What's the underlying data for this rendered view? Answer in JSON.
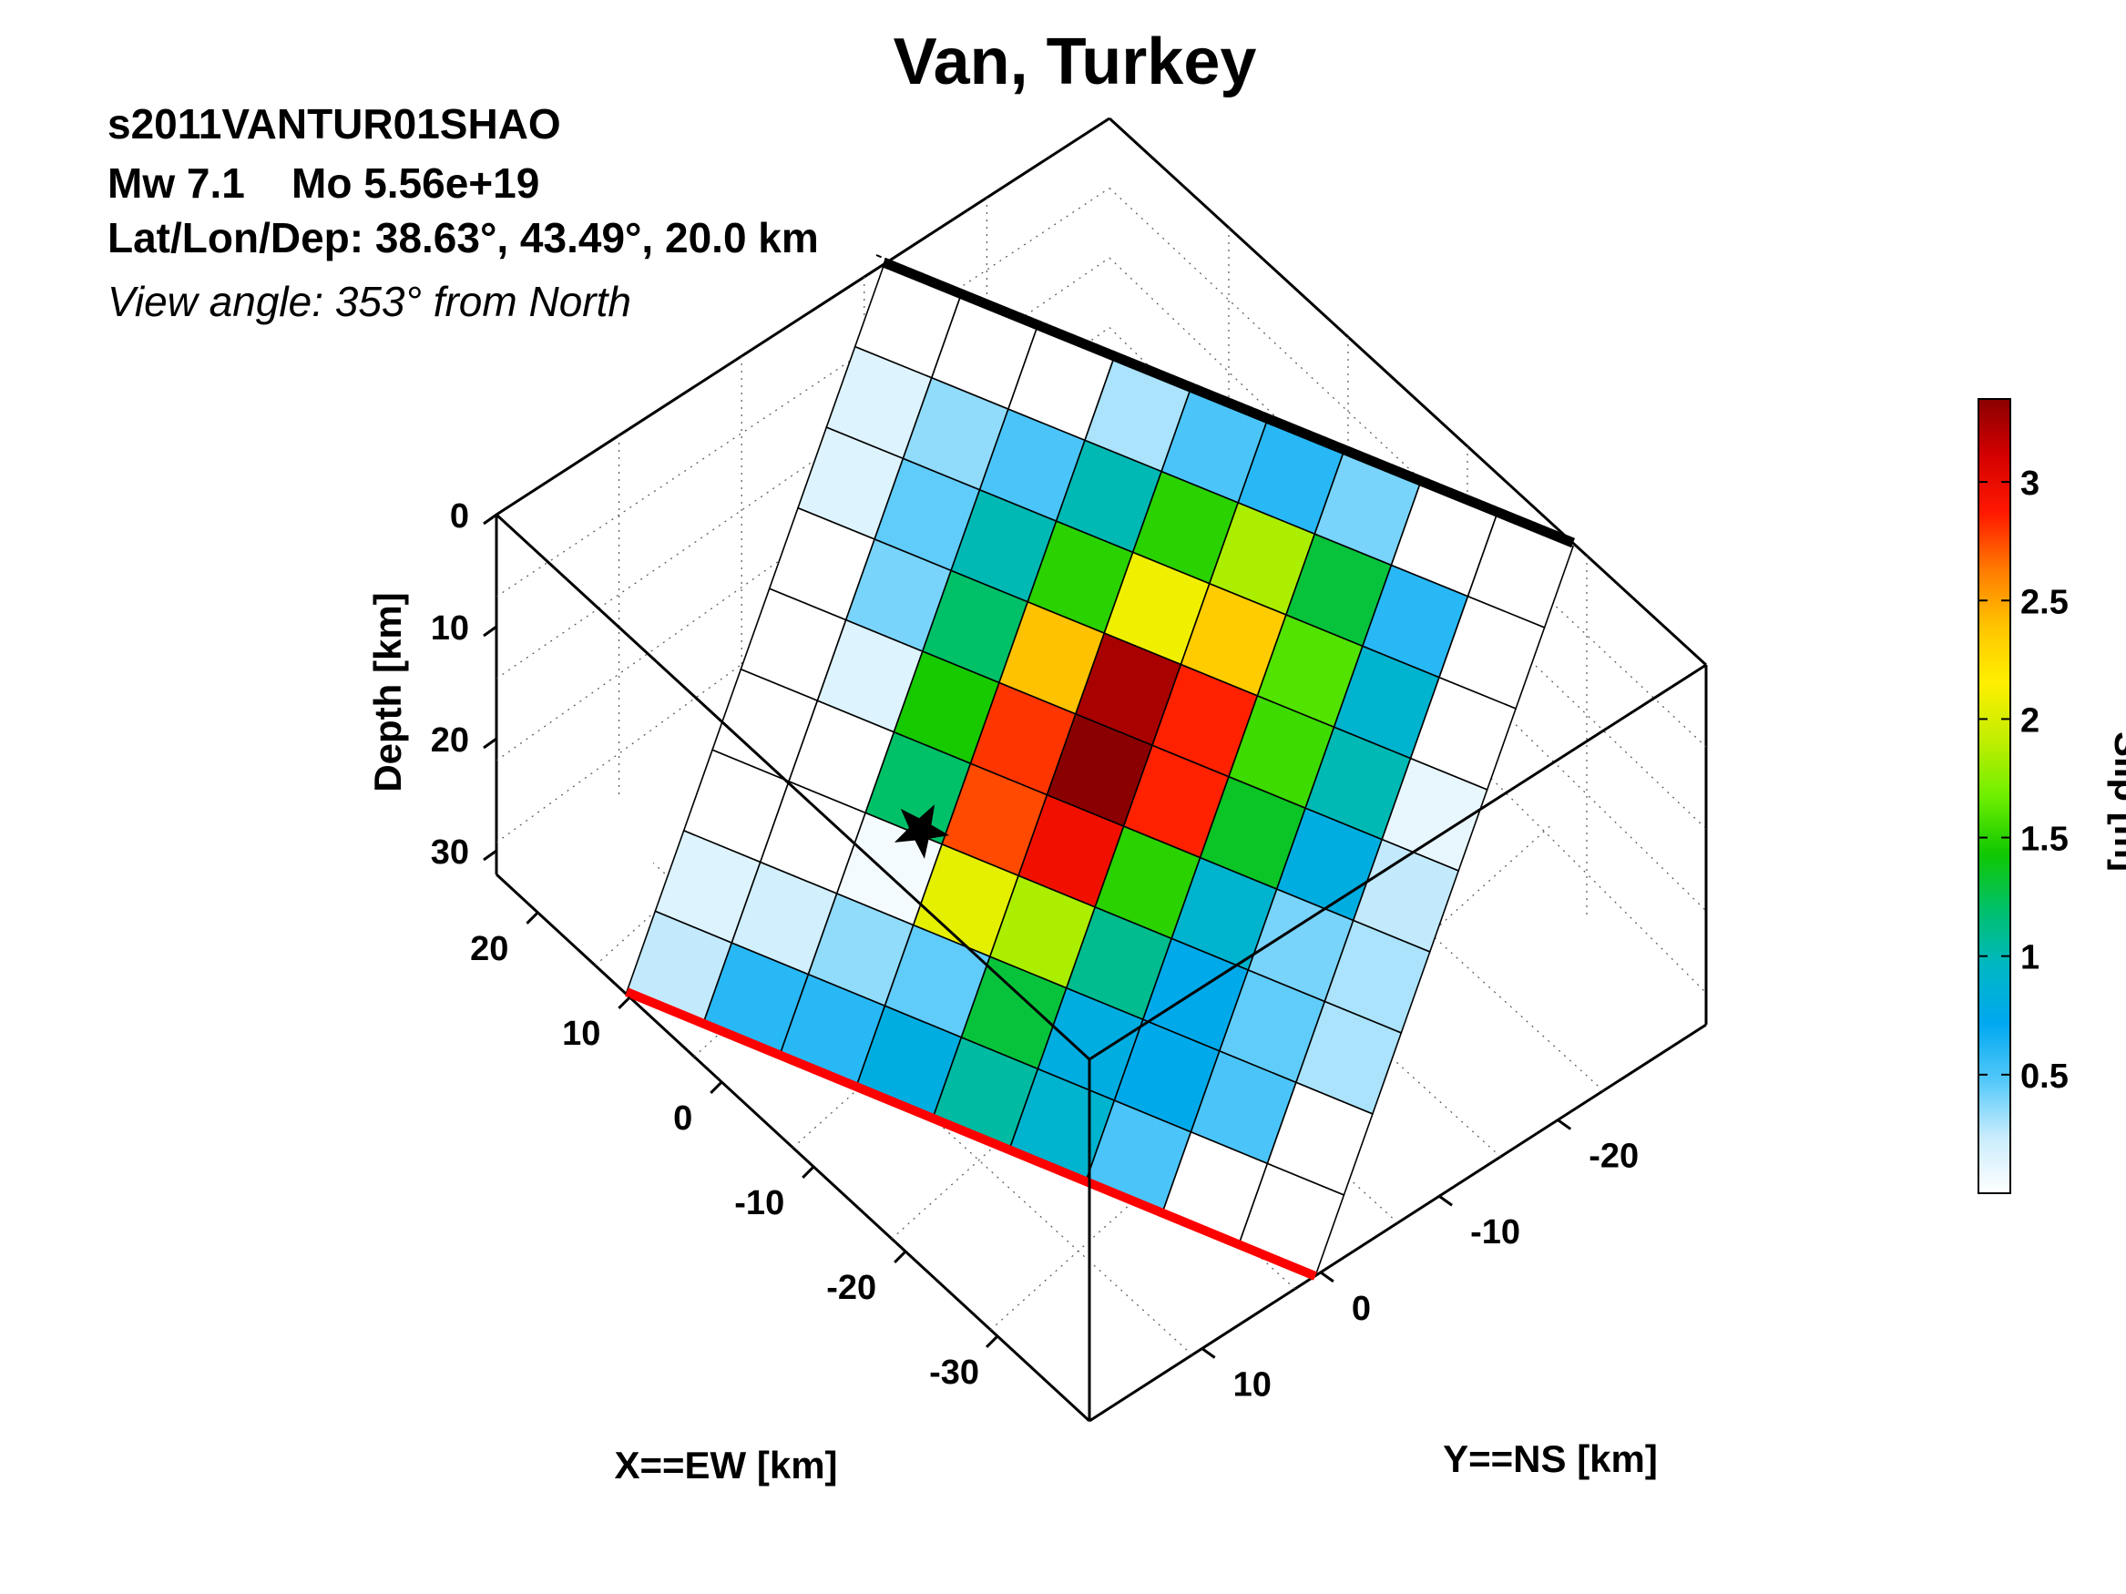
{
  "chart_data": {
    "type": "heatmap",
    "title": "Van, Turkey",
    "event_id": "s2011VANTUR01SHAO",
    "magnitude_text": "Mw 7.1",
    "moment_text": "Mo 5.56e+19",
    "location_text": "Lat/Lon/Dep: 38.63°, 43.49°, 20.0 km",
    "view_text": "View angle: 353° from North",
    "xlabel": "X==EW [km]",
    "ylabel": "Y==NS [km]",
    "zlabel": "Depth [km]",
    "colorbar_label": "Slip [m]",
    "x_ticks": [
      "20",
      "10",
      "0",
      "-10",
      "-20",
      "-30"
    ],
    "y_ticks": [
      "-20",
      "-10",
      "0",
      "10"
    ],
    "depth_ticks": [
      "0",
      "10",
      "20",
      "30"
    ],
    "colorbar_ticks": [
      "0.5",
      "1",
      "1.5",
      "2",
      "2.5",
      "3"
    ],
    "color_range": [
      0,
      3.35
    ],
    "subfault_grid": {
      "rows_top_to_bottom": 9,
      "columns_from_left_to_right": 9,
      "slip_m": [
        [
          0.0,
          0.0,
          0.0,
          0.3,
          0.5,
          0.6,
          0.4,
          0.0,
          0.0
        ],
        [
          0.15,
          0.35,
          0.5,
          1.0,
          1.5,
          1.85,
          1.3,
          0.6,
          0.0
        ],
        [
          0.15,
          0.45,
          1.0,
          1.5,
          2.1,
          2.35,
          1.6,
          0.9,
          0.0
        ],
        [
          0.0,
          0.4,
          1.2,
          2.4,
          3.25,
          2.85,
          1.55,
          1.0,
          0.1
        ],
        [
          0.0,
          0.15,
          1.45,
          2.8,
          3.35,
          2.85,
          1.35,
          0.8,
          0.25
        ],
        [
          0.0,
          0.0,
          1.2,
          2.75,
          2.95,
          1.5,
          0.9,
          0.4,
          0.3
        ],
        [
          0.0,
          0.0,
          0.05,
          2.05,
          1.85,
          1.1,
          0.75,
          0.45,
          0.3
        ],
        [
          0.15,
          0.2,
          0.35,
          0.45,
          1.3,
          0.8,
          0.75,
          0.5,
          0.0
        ],
        [
          0.25,
          0.6,
          0.6,
          0.8,
          1.05,
          0.9,
          0.5,
          0.0,
          0.0
        ]
      ]
    },
    "top_edge_color": "#000000",
    "bottom_edge_color": "#ff0000",
    "hypocenter_marker": "star-icon",
    "colormap": [
      "#ffffff",
      "#c8ecfc",
      "#52c8fa",
      "#00a8f0",
      "#00b7c4",
      "#00c06a",
      "#11c800",
      "#6fef00",
      "#c2ee00",
      "#ffef00",
      "#ffc400",
      "#ff7a00",
      "#ff1800",
      "#d40000",
      "#8a0000"
    ]
  }
}
